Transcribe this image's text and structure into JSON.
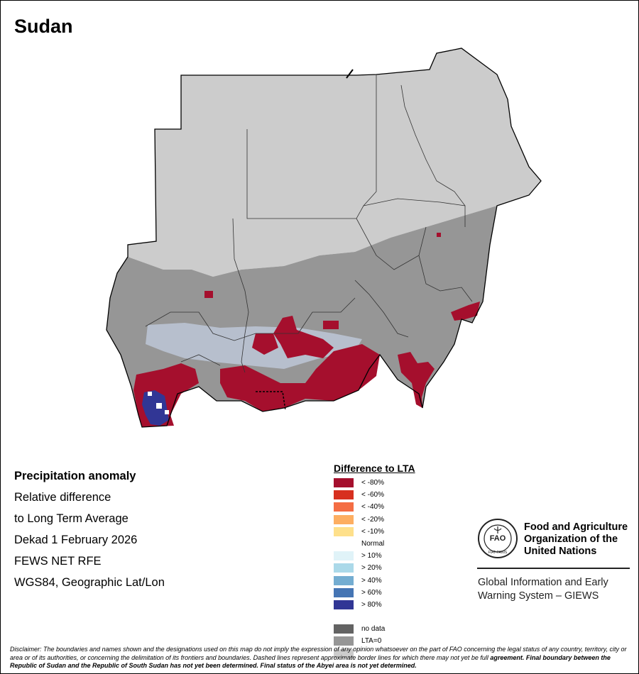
{
  "title": "Sudan",
  "info": {
    "heading": "Precipitation anomaly",
    "line1": "Relative difference",
    "line2": "to Long Term Average",
    "line3": "Dekad 1 February 2026",
    "line4": "FEWS NET RFE",
    "line5": "WGS84, Geographic Lat/Lon"
  },
  "legend": {
    "title": "Difference to LTA",
    "items": [
      {
        "label": "< -80%",
        "color": "#a50f2d"
      },
      {
        "label": "< -60%",
        "color": "#d7301f"
      },
      {
        "label": "< -40%",
        "color": "#f46d43"
      },
      {
        "label": "< -20%",
        "color": "#fdae61"
      },
      {
        "label": "< -10%",
        "color": "#fee08b"
      },
      {
        "label": "Normal",
        "color": "#ffffff"
      },
      {
        "label": "> 10%",
        "color": "#e0f3f8"
      },
      {
        "label": "> 20%",
        "color": "#abd9e9"
      },
      {
        "label": "> 40%",
        "color": "#74add1"
      },
      {
        "label": "> 60%",
        "color": "#4575b4"
      },
      {
        "label": "> 80%",
        "color": "#313695"
      },
      {
        "label": "",
        "color": ""
      },
      {
        "label": "no data",
        "color": "#636363"
      },
      {
        "label": "LTA=0",
        "color": "#969696"
      },
      {
        "label": "",
        "color": "#cccccc"
      }
    ]
  },
  "org": {
    "name_line1": "Food and Agriculture",
    "name_line2": "Organization of the",
    "name_line3": "United Nations",
    "system_line1": "Global Information and Early",
    "system_line2": "Warning System – GIEWS"
  },
  "disclaimer": {
    "text": "Disclaimer: The boundaries and names shown and the designations used on this map do not imply the expression of any opinion whatsoever on the part of FAO concerning the legal status of any country, territory, city or area or of its authorities, or concerning the delimitation of its frontiers and boundaries. Dashed lines represent approximate border lines for which there may not yet be full",
    "bold": "agreement.  Final boundary between the Republic of Sudan and the Republic of South Sudan has not yet been determined. Final status of the Abyei area is not yet determined."
  }
}
